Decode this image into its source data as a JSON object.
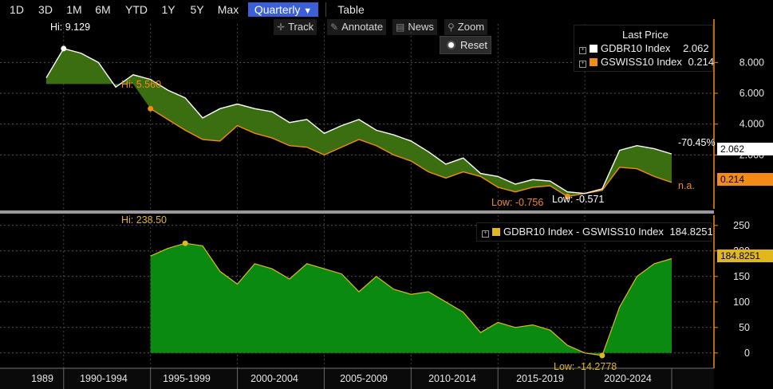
{
  "tabs": [
    "1D",
    "3D",
    "1M",
    "6M",
    "YTD",
    "1Y",
    "5Y",
    "Max"
  ],
  "period": {
    "label": "Quarterly",
    "arrow": "▼"
  },
  "table_tab": "Table",
  "tools": {
    "track": "Track",
    "annotate": "Annotate",
    "news": "News",
    "zoom": "Zoom",
    "reset": "Reset"
  },
  "legend_top": {
    "header": "Last Price",
    "rows": [
      {
        "name": "GDBR10 Index",
        "value": "2.062",
        "color": "#ffffff"
      },
      {
        "name": "GSWISS10 Index",
        "value": "0.214",
        "color": "#f28c16"
      }
    ]
  },
  "legend_bottom": {
    "name": "GDBR10 Index - GSWISS10 Index",
    "value": "184.8251",
    "color": "#e0b81e"
  },
  "tags": {
    "gdbr": "2.062",
    "gswiss": "0.214",
    "spread": "184.8251",
    "pct": "-70.45%",
    "na": "n.a."
  },
  "annotations": {
    "hi_top": "Hi: 9.129",
    "hi_swiss": "Hi: 5.560",
    "low_swiss": "Low: -0.756",
    "low_gdbr": "Low: -0.571",
    "hi_spread": "Hi: 238.50",
    "low_spread": "Low: -14.2778"
  },
  "x_labels": [
    "1989",
    "1990-1994",
    "1995-1999",
    "2000-2004",
    "2005-2009",
    "2010-2014",
    "2015-2019",
    "2020-2024"
  ],
  "colors": {
    "fill_top": "#3a6e10",
    "fill_bottom": "#0b8a12",
    "gdbr": "#ffffff",
    "gswiss": "#f28c16",
    "spread_line": "#e0b81e",
    "axis": "#f28c16"
  },
  "chart_data": [
    {
      "type": "area",
      "series": [
        {
          "name": "GDBR10 Index",
          "years": [
            1989,
            1990,
            1991,
            1992,
            1993,
            1994,
            1995,
            1996,
            1997,
            1998,
            1999,
            2000,
            2001,
            2002,
            2003,
            2004,
            2005,
            2006,
            2007,
            2008,
            2009,
            2010,
            2011,
            2012,
            2013,
            2014,
            2015,
            2016,
            2017,
            2018,
            2019,
            2020,
            2021,
            2022,
            2023,
            2024,
            2025
          ],
          "values": [
            7.0,
            8.9,
            8.6,
            8.0,
            6.4,
            7.2,
            6.9,
            6.2,
            5.7,
            4.4,
            5.0,
            5.3,
            5.0,
            4.8,
            4.1,
            4.3,
            3.4,
            3.9,
            4.3,
            3.6,
            3.3,
            2.9,
            2.2,
            1.4,
            1.8,
            0.8,
            0.6,
            0.1,
            0.4,
            0.3,
            -0.4,
            -0.5,
            -0.2,
            2.3,
            2.6,
            2.4,
            2.062
          ]
        },
        {
          "name": "GSWISS10 Index",
          "years": [
            1995,
            1996,
            1997,
            1998,
            1999,
            2000,
            2001,
            2002,
            2003,
            2004,
            2005,
            2006,
            2007,
            2008,
            2009,
            2010,
            2011,
            2012,
            2013,
            2014,
            2015,
            2016,
            2017,
            2018,
            2019,
            2020,
            2021,
            2022,
            2023,
            2024,
            2025
          ],
          "values": [
            5.0,
            4.3,
            3.6,
            3.0,
            2.9,
            3.9,
            3.4,
            3.1,
            2.6,
            2.5,
            2.0,
            2.5,
            3.0,
            2.6,
            2.0,
            1.6,
            0.9,
            0.5,
            0.9,
            0.6,
            -0.1,
            -0.4,
            -0.1,
            0.0,
            -0.7,
            -0.5,
            -0.3,
            1.2,
            1.1,
            0.6,
            0.214
          ]
        }
      ],
      "yticks": [
        2.0,
        4.0,
        6.0,
        8.0
      ],
      "ylim": [
        -1.5,
        10.5
      ]
    },
    {
      "type": "area",
      "series": [
        {
          "name": "GDBR10 Index - GSWISS10 Index",
          "years": [
            1995,
            1996,
            1997,
            1998,
            1999,
            2000,
            2001,
            2002,
            2003,
            2004,
            2005,
            2006,
            2007,
            2008,
            2009,
            2010,
            2011,
            2012,
            2013,
            2014,
            2015,
            2016,
            2017,
            2018,
            2019,
            2020,
            2021,
            2022,
            2023,
            2024,
            2025
          ],
          "values": [
            190,
            205,
            215,
            210,
            160,
            135,
            175,
            165,
            145,
            175,
            165,
            155,
            120,
            150,
            125,
            115,
            120,
            100,
            80,
            40,
            60,
            50,
            55,
            45,
            15,
            0,
            -5,
            90,
            150,
            175,
            184.8251
          ]
        }
      ],
      "yticks": [
        0,
        50,
        100,
        150,
        200,
        250
      ],
      "ylim": [
        -30,
        270
      ]
    }
  ]
}
